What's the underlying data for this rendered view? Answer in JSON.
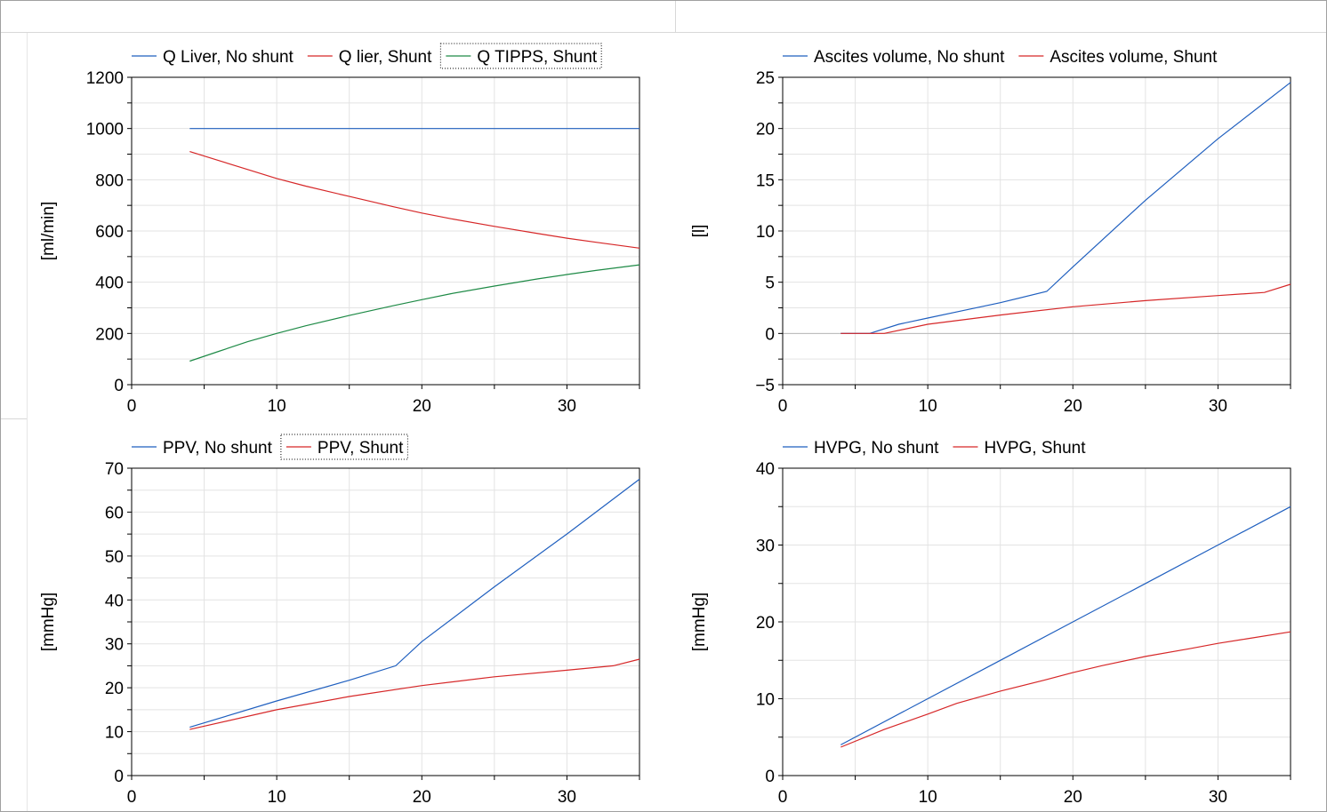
{
  "chart_data": [
    {
      "type": "line",
      "ylabel": "[ml/min]",
      "xlim": [
        0,
        35
      ],
      "ylim": [
        0,
        1200
      ],
      "x_ticks": [
        0,
        10,
        20,
        30
      ],
      "y_ticks": [
        0,
        200,
        400,
        600,
        800,
        1000,
        1200
      ],
      "grid": true,
      "legend_position": "top",
      "series": [
        {
          "name": "Q Liver, No shunt",
          "color": "#1f5fbf",
          "x": [
            4,
            35
          ],
          "y": [
            1000,
            1000
          ]
        },
        {
          "name": "Q lier, Shunt",
          "color": "#d62728",
          "x": [
            4,
            6,
            8,
            10,
            12,
            15,
            18,
            20,
            22,
            25,
            28,
            30,
            32,
            35
          ],
          "y": [
            910,
            875,
            840,
            805,
            775,
            735,
            695,
            670,
            648,
            618,
            590,
            572,
            556,
            533
          ]
        },
        {
          "name": "Q TIPPS, Shunt",
          "color": "#1e8a46",
          "x": [
            4,
            6,
            8,
            10,
            12,
            15,
            18,
            20,
            22,
            25,
            28,
            30,
            32,
            35
          ],
          "y": [
            92,
            130,
            168,
            200,
            230,
            270,
            308,
            332,
            355,
            385,
            413,
            430,
            446,
            468
          ]
        }
      ]
    },
    {
      "type": "line",
      "ylabel": "[l]",
      "xlim": [
        0,
        35
      ],
      "ylim": [
        -5,
        25
      ],
      "x_ticks": [
        0,
        10,
        20,
        30
      ],
      "y_ticks": [
        -5,
        0,
        5,
        10,
        15,
        20,
        25
      ],
      "grid": true,
      "legend_position": "top",
      "series": [
        {
          "name": "Ascites volume, No shunt",
          "color": "#1f5fbf",
          "x": [
            4,
            6,
            8,
            10,
            12,
            15,
            18.2,
            20,
            25,
            30,
            35
          ],
          "y": [
            0,
            0,
            0.9,
            1.5,
            2.1,
            3.0,
            4.1,
            6.5,
            13.0,
            19.0,
            24.5
          ]
        },
        {
          "name": "Ascites volume, Shunt",
          "color": "#d62728",
          "x": [
            4,
            7,
            10,
            15,
            20,
            25,
            30,
            33.2,
            35
          ],
          "y": [
            0,
            0,
            0.9,
            1.8,
            2.6,
            3.2,
            3.7,
            4.0,
            4.8
          ]
        }
      ]
    },
    {
      "type": "line",
      "ylabel": "[mmHg]",
      "xlim": [
        0,
        35
      ],
      "ylim": [
        0,
        70
      ],
      "x_ticks": [
        0,
        10,
        20,
        30
      ],
      "y_ticks": [
        0,
        10,
        20,
        30,
        40,
        50,
        60,
        70
      ],
      "grid": true,
      "legend_position": "top",
      "series": [
        {
          "name": "PPV, No shunt",
          "color": "#1f5fbf",
          "x": [
            4,
            10,
            15,
            18.2,
            20,
            25,
            30,
            35
          ],
          "y": [
            11,
            17,
            21.7,
            25,
            30.5,
            43,
            55,
            67.5
          ]
        },
        {
          "name": "PPV, Shunt",
          "color": "#d62728",
          "x": [
            4,
            10,
            15,
            20,
            25,
            30,
            33.2,
            35
          ],
          "y": [
            10.5,
            15,
            18,
            20.5,
            22.5,
            24,
            25,
            26.5
          ]
        }
      ]
    },
    {
      "type": "line",
      "ylabel": "[mmHg]",
      "xlim": [
        0,
        35
      ],
      "ylim": [
        0,
        40
      ],
      "x_ticks": [
        0,
        10,
        20,
        30
      ],
      "y_ticks": [
        0,
        10,
        20,
        30,
        40
      ],
      "grid": true,
      "legend_position": "top",
      "series": [
        {
          "name": "HVPG, No shunt",
          "color": "#1f5fbf",
          "x": [
            4,
            10,
            15,
            20,
            25,
            30,
            35
          ],
          "y": [
            4,
            10,
            15,
            20,
            25,
            30,
            35
          ]
        },
        {
          "name": "HVPG, Shunt",
          "color": "#d62728",
          "x": [
            4,
            7,
            10,
            12,
            15,
            18,
            20,
            22,
            25,
            28,
            30,
            32,
            35
          ],
          "y": [
            3.7,
            6,
            8,
            9.4,
            11,
            12.4,
            13.4,
            14.3,
            15.5,
            16.5,
            17.2,
            17.8,
            18.7
          ]
        }
      ]
    }
  ]
}
